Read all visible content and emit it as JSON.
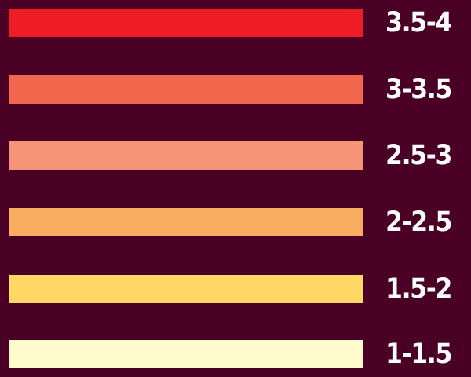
{
  "legend": {
    "items": [
      {
        "label": "3.5-4",
        "color": "#ee1c25"
      },
      {
        "label": "3-3.5",
        "color": "#f2664d"
      },
      {
        "label": "2.5-3",
        "color": "#f69478"
      },
      {
        "label": "2-2.5",
        "color": "#f8ac62"
      },
      {
        "label": "1.5-2",
        "color": "#ffd764"
      },
      {
        "label": "1-1.5",
        "color": "#fffbcc"
      }
    ]
  },
  "colors": {
    "background": "#4a0024",
    "label_text": "#ffffff"
  }
}
